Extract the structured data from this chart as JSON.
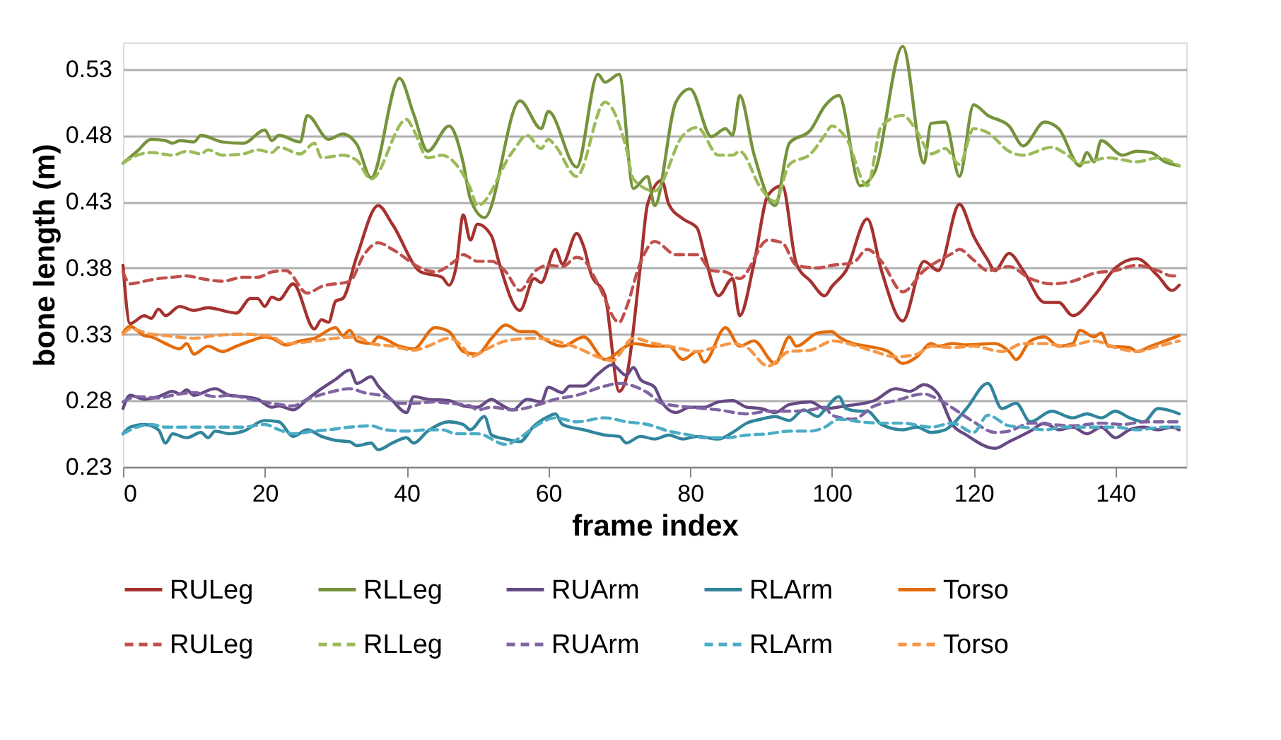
{
  "chart_data": {
    "type": "line",
    "xlabel": "frame index",
    "ylabel": "bone length (m)",
    "xlim": [
      0,
      150
    ],
    "xticks": [
      0,
      20,
      40,
      60,
      80,
      100,
      120,
      140
    ],
    "ylim": [
      0.23,
      0.55
    ],
    "yticks": [
      0.23,
      0.28,
      0.33,
      0.38,
      0.43,
      0.48,
      0.53
    ],
    "grid": "y",
    "legend": "bottom",
    "marker": "none",
    "series": [
      {
        "name": "RULeg",
        "color": "#a5322e",
        "line_style": "solid",
        "x": [
          0,
          1,
          3,
          4,
          5,
          6,
          8,
          10,
          12,
          16,
          18,
          19,
          20,
          21,
          22,
          24,
          27,
          28,
          29,
          30,
          31,
          33,
          36,
          38,
          42,
          45,
          46,
          47,
          48,
          49,
          50,
          52,
          53,
          56,
          58,
          59,
          61,
          62,
          64,
          65,
          66,
          68,
          70,
          71,
          73,
          74,
          76,
          77,
          79,
          81,
          82,
          84,
          86,
          87,
          89,
          91,
          93,
          95,
          97,
          99,
          100,
          102,
          105,
          107,
          110,
          113,
          115,
          118,
          120,
          122,
          123,
          125,
          127,
          130,
          132,
          134,
          137,
          140,
          143,
          146,
          148,
          149
        ],
        "values": [
          0.382,
          0.338,
          0.344,
          0.342,
          0.349,
          0.344,
          0.351,
          0.348,
          0.35,
          0.346,
          0.357,
          0.357,
          0.351,
          0.358,
          0.356,
          0.368,
          0.334,
          0.341,
          0.339,
          0.355,
          0.357,
          0.389,
          0.427,
          0.413,
          0.377,
          0.373,
          0.367,
          0.381,
          0.42,
          0.401,
          0.413,
          0.404,
          0.385,
          0.348,
          0.372,
          0.369,
          0.394,
          0.383,
          0.406,
          0.396,
          0.376,
          0.359,
          0.287,
          0.297,
          0.382,
          0.428,
          0.446,
          0.428,
          0.417,
          0.41,
          0.391,
          0.359,
          0.372,
          0.344,
          0.383,
          0.435,
          0.442,
          0.383,
          0.37,
          0.359,
          0.366,
          0.378,
          0.417,
          0.378,
          0.34,
          0.385,
          0.378,
          0.428,
          0.404,
          0.386,
          0.378,
          0.391,
          0.378,
          0.354,
          0.354,
          0.344,
          0.359,
          0.38,
          0.387,
          0.374,
          0.363,
          0.367
        ]
      },
      {
        "name": "RLLeg",
        "color": "#76933c",
        "line_style": "solid",
        "x": [
          0,
          2,
          4,
          6,
          7,
          8,
          10,
          11,
          14,
          17,
          20,
          21,
          22,
          25,
          26,
          29,
          31,
          33,
          35,
          39,
          41,
          43,
          46,
          48,
          49,
          51,
          56,
          59,
          60,
          64,
          67,
          68,
          70,
          72,
          74,
          75,
          78,
          80,
          83,
          85,
          86,
          87,
          89,
          92,
          94,
          97,
          99,
          101,
          104,
          106,
          110,
          113,
          114,
          116,
          118,
          120,
          122,
          125,
          127,
          130,
          132,
          135,
          136,
          137,
          138,
          141,
          143,
          145,
          147,
          149
        ],
        "values": [
          0.459,
          0.468,
          0.477,
          0.476,
          0.474,
          0.476,
          0.475,
          0.48,
          0.475,
          0.474,
          0.484,
          0.476,
          0.48,
          0.475,
          0.495,
          0.477,
          0.481,
          0.473,
          0.448,
          0.523,
          0.496,
          0.468,
          0.487,
          0.459,
          0.432,
          0.418,
          0.506,
          0.485,
          0.498,
          0.456,
          0.526,
          0.52,
          0.526,
          0.44,
          0.449,
          0.427,
          0.505,
          0.515,
          0.479,
          0.485,
          0.48,
          0.51,
          0.466,
          0.427,
          0.474,
          0.484,
          0.502,
          0.51,
          0.442,
          0.452,
          0.547,
          0.459,
          0.489,
          0.49,
          0.449,
          0.503,
          0.495,
          0.487,
          0.472,
          0.49,
          0.485,
          0.457,
          0.467,
          0.46,
          0.476,
          0.465,
          0.468,
          0.467,
          0.46,
          0.457
        ]
      },
      {
        "name": "RUArm",
        "color": "#664a84",
        "line_style": "solid",
        "x": [
          0,
          1,
          3,
          5,
          7,
          8,
          9,
          10,
          13,
          15,
          17,
          19,
          21,
          22,
          24,
          26,
          28,
          30,
          32,
          33,
          35,
          36,
          38,
          40,
          41,
          43,
          46,
          48,
          50,
          52,
          53,
          55,
          57,
          59,
          60,
          62,
          63,
          65,
          67,
          69,
          71,
          72,
          73,
          75,
          76,
          78,
          80,
          82,
          84,
          86,
          88,
          90,
          92,
          94,
          97,
          99,
          102,
          106,
          109,
          111,
          113,
          115,
          117,
          119,
          123,
          125,
          128,
          130,
          132,
          134,
          136,
          138,
          140,
          142,
          144,
          146,
          148,
          149
        ],
        "values": [
          0.274,
          0.284,
          0.281,
          0.283,
          0.287,
          0.285,
          0.288,
          0.284,
          0.289,
          0.284,
          0.283,
          0.281,
          0.275,
          0.276,
          0.273,
          0.281,
          0.289,
          0.296,
          0.303,
          0.293,
          0.298,
          0.291,
          0.28,
          0.271,
          0.283,
          0.281,
          0.28,
          0.276,
          0.275,
          0.281,
          0.278,
          0.273,
          0.281,
          0.279,
          0.29,
          0.286,
          0.291,
          0.291,
          0.3,
          0.307,
          0.299,
          0.305,
          0.296,
          0.29,
          0.279,
          0.271,
          0.275,
          0.275,
          0.279,
          0.28,
          0.275,
          0.274,
          0.271,
          0.277,
          0.279,
          0.274,
          0.276,
          0.28,
          0.289,
          0.287,
          0.292,
          0.285,
          0.262,
          0.254,
          0.244,
          0.249,
          0.257,
          0.263,
          0.258,
          0.26,
          0.255,
          0.26,
          0.252,
          0.258,
          0.26,
          0.258,
          0.26,
          0.258
        ]
      },
      {
        "name": "RLArm",
        "color": "#31859c",
        "line_style": "solid",
        "x": [
          0,
          1,
          3,
          5,
          6,
          7,
          9,
          11,
          12,
          13,
          15,
          17,
          20,
          22,
          24,
          26,
          28,
          30,
          32,
          33,
          35,
          36,
          38,
          40,
          41,
          43,
          46,
          48,
          49,
          51,
          52,
          54,
          56,
          58,
          60,
          61,
          62,
          65,
          68,
          70,
          71,
          73,
          75,
          77,
          79,
          81,
          84,
          86,
          88,
          90,
          92,
          94,
          96,
          98,
          99,
          101,
          102,
          104,
          105,
          107,
          110,
          112,
          114,
          116,
          117,
          119,
          122,
          124,
          126,
          128,
          131,
          134,
          136,
          138,
          140,
          142,
          144,
          146,
          148,
          149
        ],
        "values": [
          0.255,
          0.26,
          0.262,
          0.258,
          0.248,
          0.255,
          0.252,
          0.256,
          0.252,
          0.257,
          0.255,
          0.257,
          0.265,
          0.264,
          0.253,
          0.258,
          0.253,
          0.25,
          0.249,
          0.246,
          0.248,
          0.243,
          0.248,
          0.252,
          0.248,
          0.257,
          0.264,
          0.262,
          0.258,
          0.268,
          0.254,
          0.251,
          0.249,
          0.261,
          0.268,
          0.27,
          0.262,
          0.258,
          0.254,
          0.253,
          0.248,
          0.253,
          0.251,
          0.254,
          0.251,
          0.253,
          0.251,
          0.256,
          0.263,
          0.266,
          0.268,
          0.265,
          0.273,
          0.268,
          0.273,
          0.283,
          0.274,
          0.272,
          0.272,
          0.262,
          0.258,
          0.26,
          0.256,
          0.258,
          0.262,
          0.274,
          0.293,
          0.274,
          0.278,
          0.264,
          0.272,
          0.267,
          0.27,
          0.267,
          0.272,
          0.267,
          0.264,
          0.274,
          0.272,
          0.27
        ]
      },
      {
        "name": "Torso",
        "color": "#e46c0a",
        "line_style": "solid",
        "x": [
          0,
          1,
          3,
          4,
          6,
          8,
          9,
          10,
          12,
          14,
          16,
          18,
          20,
          21,
          23,
          25,
          27,
          30,
          31,
          32,
          33,
          35,
          36,
          39,
          41,
          44,
          46,
          48,
          50,
          52,
          54,
          56,
          58,
          59,
          62,
          65,
          68,
          71,
          72,
          75,
          77,
          79,
          81,
          82,
          85,
          87,
          89,
          92,
          94,
          95,
          98,
          100,
          101,
          103,
          105,
          108,
          110,
          112,
          114,
          115,
          117,
          119,
          123,
          125,
          126,
          128,
          130,
          132,
          134,
          135,
          137,
          138,
          139,
          142,
          143,
          145,
          147,
          149
        ],
        "values": [
          0.331,
          0.336,
          0.329,
          0.328,
          0.323,
          0.319,
          0.323,
          0.315,
          0.321,
          0.317,
          0.321,
          0.325,
          0.328,
          0.327,
          0.322,
          0.325,
          0.327,
          0.335,
          0.329,
          0.333,
          0.325,
          0.323,
          0.328,
          0.321,
          0.319,
          0.335,
          0.332,
          0.317,
          0.315,
          0.327,
          0.337,
          0.332,
          0.332,
          0.328,
          0.321,
          0.328,
          0.311,
          0.321,
          0.323,
          0.321,
          0.321,
          0.311,
          0.317,
          0.309,
          0.335,
          0.321,
          0.325,
          0.308,
          0.328,
          0.321,
          0.331,
          0.332,
          0.328,
          0.323,
          0.321,
          0.317,
          0.308,
          0.313,
          0.323,
          0.321,
          0.323,
          0.322,
          0.323,
          0.317,
          0.311,
          0.325,
          0.328,
          0.321,
          0.323,
          0.333,
          0.328,
          0.331,
          0.321,
          0.32,
          0.317,
          0.321,
          0.325,
          0.329
        ]
      },
      {
        "name": "RULeg",
        "color": "#c0504d",
        "line_style": "dashed",
        "x": [
          0,
          1,
          3,
          5,
          7,
          9,
          11,
          14,
          17,
          19,
          21,
          23,
          26,
          28,
          32,
          34,
          36,
          38,
          42,
          44,
          47,
          48,
          50,
          52,
          54,
          56,
          58,
          60,
          62,
          64,
          65,
          67,
          70,
          71,
          73,
          75,
          78,
          81,
          83,
          85,
          87,
          91,
          93,
          95,
          98,
          100,
          103,
          105,
          107,
          110,
          113,
          117,
          118,
          120,
          122,
          125,
          128,
          131,
          134,
          137,
          140,
          143,
          146,
          148,
          149
        ],
        "values": [
          0.377,
          0.368,
          0.37,
          0.372,
          0.373,
          0.374,
          0.372,
          0.37,
          0.373,
          0.373,
          0.377,
          0.378,
          0.361,
          0.366,
          0.37,
          0.39,
          0.399,
          0.394,
          0.38,
          0.377,
          0.386,
          0.39,
          0.385,
          0.385,
          0.377,
          0.363,
          0.377,
          0.382,
          0.381,
          0.388,
          0.386,
          0.368,
          0.339,
          0.35,
          0.384,
          0.4,
          0.39,
          0.39,
          0.378,
          0.377,
          0.372,
          0.401,
          0.399,
          0.382,
          0.38,
          0.382,
          0.384,
          0.394,
          0.385,
          0.362,
          0.378,
          0.391,
          0.394,
          0.386,
          0.378,
          0.381,
          0.372,
          0.368,
          0.37,
          0.376,
          0.378,
          0.382,
          0.378,
          0.374,
          0.374
        ]
      },
      {
        "name": "RLLeg",
        "color": "#9bbb59",
        "line_style": "dashed",
        "x": [
          0,
          2,
          4,
          7,
          9,
          11,
          12,
          14,
          17,
          19,
          21,
          22,
          25,
          27,
          28,
          31,
          33,
          35,
          40,
          41,
          43,
          45,
          47,
          49,
          50,
          55,
          57,
          59,
          60,
          61,
          64,
          68,
          71,
          72,
          75,
          79,
          81,
          84,
          86,
          87,
          90,
          92,
          94,
          97,
          99,
          100,
          102,
          105,
          107,
          110,
          112,
          114,
          116,
          118,
          120,
          122,
          125,
          127,
          131,
          133,
          135,
          139,
          143,
          146,
          149
        ],
        "values": [
          0.459,
          0.465,
          0.467,
          0.465,
          0.468,
          0.466,
          0.469,
          0.465,
          0.466,
          0.469,
          0.467,
          0.471,
          0.466,
          0.474,
          0.463,
          0.465,
          0.461,
          0.447,
          0.492,
          0.484,
          0.463,
          0.465,
          0.458,
          0.44,
          0.427,
          0.468,
          0.48,
          0.47,
          0.477,
          0.472,
          0.449,
          0.505,
          0.47,
          0.447,
          0.438,
          0.48,
          0.486,
          0.465,
          0.465,
          0.468,
          0.44,
          0.43,
          0.458,
          0.466,
          0.48,
          0.487,
          0.478,
          0.442,
          0.487,
          0.495,
          0.483,
          0.466,
          0.47,
          0.458,
          0.485,
          0.482,
          0.468,
          0.465,
          0.471,
          0.466,
          0.459,
          0.463,
          0.46,
          0.463,
          0.457
        ]
      },
      {
        "name": "RUArm",
        "color": "#8064a2",
        "line_style": "dashed",
        "x": [
          0,
          2,
          5,
          7,
          10,
          13,
          15,
          18,
          21,
          24,
          26,
          29,
          32,
          34,
          37,
          39,
          41,
          44,
          46,
          49,
          50,
          52,
          55,
          58,
          61,
          64,
          68,
          70,
          72,
          74,
          76,
          80,
          84,
          88,
          91,
          94,
          97,
          99,
          100,
          103,
          106,
          109,
          113,
          115,
          118,
          120,
          123,
          125,
          128,
          131,
          134,
          138,
          141,
          144,
          147,
          149
        ],
        "values": [
          0.279,
          0.283,
          0.282,
          0.284,
          0.286,
          0.283,
          0.284,
          0.281,
          0.278,
          0.276,
          0.281,
          0.286,
          0.289,
          0.286,
          0.283,
          0.278,
          0.278,
          0.279,
          0.278,
          0.276,
          0.273,
          0.275,
          0.273,
          0.276,
          0.281,
          0.284,
          0.291,
          0.293,
          0.291,
          0.286,
          0.278,
          0.275,
          0.273,
          0.27,
          0.272,
          0.272,
          0.273,
          0.275,
          0.269,
          0.266,
          0.276,
          0.28,
          0.285,
          0.281,
          0.271,
          0.264,
          0.256,
          0.257,
          0.263,
          0.262,
          0.261,
          0.263,
          0.262,
          0.264,
          0.264,
          0.264
        ]
      },
      {
        "name": "RLArm",
        "color": "#4bacc6",
        "line_style": "dashed",
        "x": [
          0,
          2,
          4,
          6,
          9,
          11,
          14,
          17,
          20,
          22,
          24,
          27,
          29,
          32,
          35,
          37,
          40,
          43,
          45,
          47,
          50,
          54,
          56,
          58,
          61,
          64,
          68,
          71,
          74,
          77,
          80,
          82,
          85,
          88,
          91,
          94,
          97,
          99,
          101,
          104,
          107,
          110,
          114,
          117,
          120,
          122,
          125,
          127,
          130,
          133,
          137,
          140,
          143,
          147,
          149
        ],
        "values": [
          0.255,
          0.26,
          0.262,
          0.26,
          0.26,
          0.26,
          0.26,
          0.26,
          0.262,
          0.258,
          0.255,
          0.257,
          0.258,
          0.26,
          0.261,
          0.258,
          0.257,
          0.258,
          0.258,
          0.255,
          0.255,
          0.247,
          0.252,
          0.26,
          0.267,
          0.264,
          0.267,
          0.264,
          0.262,
          0.257,
          0.254,
          0.252,
          0.252,
          0.254,
          0.255,
          0.257,
          0.257,
          0.26,
          0.266,
          0.264,
          0.263,
          0.263,
          0.26,
          0.263,
          0.256,
          0.269,
          0.261,
          0.26,
          0.258,
          0.26,
          0.26,
          0.26,
          0.258,
          0.26,
          0.26
        ]
      },
      {
        "name": "Torso",
        "color": "#f79646",
        "line_style": "dashed",
        "x": [
          0,
          1,
          4,
          6,
          10,
          13,
          17,
          21,
          23,
          27,
          30,
          33,
          35,
          38,
          41,
          43,
          46,
          48,
          49,
          51,
          54,
          58,
          61,
          64,
          67,
          69,
          72,
          75,
          78,
          81,
          84,
          86,
          88,
          91,
          94,
          97,
          99,
          100,
          103,
          106,
          109,
          112,
          114,
          117,
          120,
          124,
          127,
          130,
          133,
          137,
          140,
          143,
          146,
          149
        ],
        "values": [
          0.33,
          0.334,
          0.33,
          0.329,
          0.327,
          0.329,
          0.33,
          0.328,
          0.323,
          0.325,
          0.327,
          0.328,
          0.323,
          0.321,
          0.318,
          0.321,
          0.327,
          0.32,
          0.313,
          0.318,
          0.325,
          0.327,
          0.325,
          0.32,
          0.313,
          0.31,
          0.327,
          0.323,
          0.32,
          0.317,
          0.321,
          0.323,
          0.32,
          0.306,
          0.317,
          0.318,
          0.323,
          0.325,
          0.322,
          0.317,
          0.313,
          0.315,
          0.321,
          0.32,
          0.321,
          0.317,
          0.323,
          0.323,
          0.321,
          0.325,
          0.32,
          0.317,
          0.321,
          0.325
        ]
      }
    ]
  }
}
